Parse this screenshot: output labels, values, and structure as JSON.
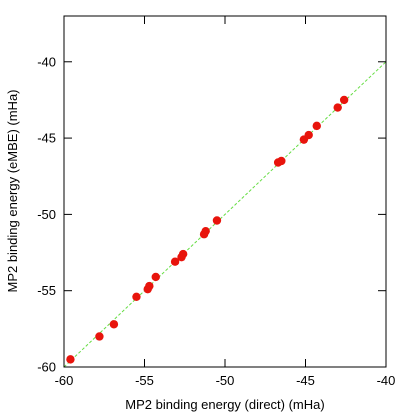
{
  "chart_data": {
    "type": "scatter",
    "title": "",
    "xlabel": "MP2 binding energy (direct) (mHa)",
    "ylabel": "MP2 binding energy (eMBE) (mHa)",
    "xlim": [
      -60,
      -40
    ],
    "ylim": [
      -60,
      -37
    ],
    "xticks": [
      -60,
      -55,
      -50,
      -45,
      -40
    ],
    "yticks": [
      -60,
      -55,
      -50,
      -45,
      -40
    ],
    "grid": false,
    "reference_line": {
      "style": "dashed",
      "color": "#66dd44",
      "x": [
        -60,
        -40
      ],
      "y": [
        -60,
        -40
      ]
    },
    "series": [
      {
        "color": "#e8140c",
        "points": [
          [
            -59.6,
            -59.5
          ],
          [
            -57.8,
            -58.0
          ],
          [
            -56.9,
            -57.2
          ],
          [
            -55.5,
            -55.4
          ],
          [
            -54.8,
            -54.9
          ],
          [
            -54.7,
            -54.7
          ],
          [
            -54.3,
            -54.1
          ],
          [
            -53.1,
            -53.1
          ],
          [
            -52.7,
            -52.8
          ],
          [
            -52.6,
            -52.6
          ],
          [
            -51.3,
            -51.3
          ],
          [
            -51.2,
            -51.1
          ],
          [
            -50.5,
            -50.4
          ],
          [
            -46.7,
            -46.6
          ],
          [
            -46.5,
            -46.5
          ],
          [
            -45.1,
            -45.1
          ],
          [
            -44.8,
            -44.8
          ],
          [
            -44.3,
            -44.2
          ],
          [
            -43.0,
            -43.0
          ],
          [
            -42.6,
            -42.5
          ]
        ]
      }
    ]
  }
}
